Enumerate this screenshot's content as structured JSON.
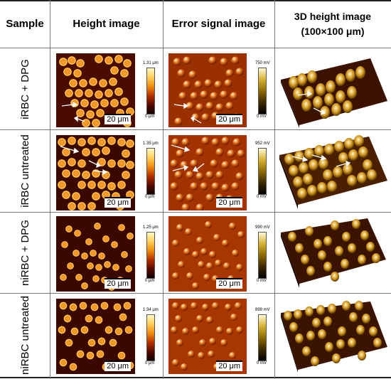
{
  "headers": {
    "sample": "Sample",
    "height": "Height image",
    "error": "Error signal image",
    "d3_line1": "3D height image",
    "d3_line2": "(100×100 μm)"
  },
  "rows": [
    {
      "label": "iRBC + DPG",
      "height_scale": "20 μm",
      "height_max": "1.31 μm",
      "height_min": "0 μm",
      "error_scale": "20 μm",
      "error_max": "750 mV",
      "error_min": "0 mV"
    },
    {
      "label": "iRBC untreated",
      "height_scale": "20 μm",
      "height_max": "1.35 μm",
      "height_min": "0 μm",
      "error_scale": "20 μm",
      "error_max": "952 mV",
      "error_min": "0 mV"
    },
    {
      "label": "niRBC + DPG",
      "height_scale": "20 μm",
      "height_max": "1.25 μm",
      "height_min": "0 μm",
      "error_scale": "20 μm",
      "error_max": "990 mV",
      "error_min": "0 mV"
    },
    {
      "label": "niRBC untreated",
      "height_scale": "20 μm",
      "height_max": "1.34 μm",
      "height_min": "0 μm",
      "error_scale": "20 μm",
      "error_max": "899 mV",
      "error_min": "0 mV"
    }
  ]
}
